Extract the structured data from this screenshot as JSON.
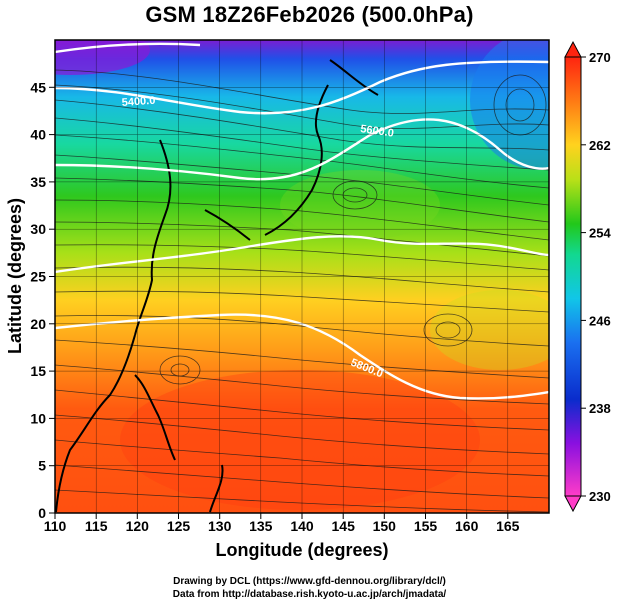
{
  "title": "GSM 18Z26Feb2026 (500.0hPa)",
  "x_axis": {
    "label": "Longitude (degrees)",
    "ticks": [
      "110",
      "115",
      "120",
      "125",
      "130",
      "135",
      "140",
      "145",
      "150",
      "155",
      "160",
      "165"
    ],
    "range": [
      110,
      170
    ]
  },
  "y_axis": {
    "label": "Latitude (degrees)",
    "ticks": [
      "0",
      "5",
      "10",
      "15",
      "20",
      "25",
      "30",
      "35",
      "40",
      "45"
    ],
    "range": [
      0,
      50
    ]
  },
  "colorbar": {
    "ticks": [
      "230",
      "238",
      "246",
      "254",
      "262",
      "270"
    ],
    "range": [
      230,
      270
    ],
    "colors": [
      "#ff3cc8",
      "#0a2ccc",
      "#11c6e8",
      "#22c81a",
      "#ffd21e",
      "#ff2410"
    ]
  },
  "contours": [
    {
      "label": "5400.0"
    },
    {
      "label": "5600.0"
    },
    {
      "label": "5800.0"
    }
  ],
  "footer": {
    "line1": "Drawing by DCL (https://www.gfd-dennou.org/library/dcl/)",
    "line2": "Data from http://database.rish.kyoto-u.ac.jp/arch/jmadata/"
  }
}
